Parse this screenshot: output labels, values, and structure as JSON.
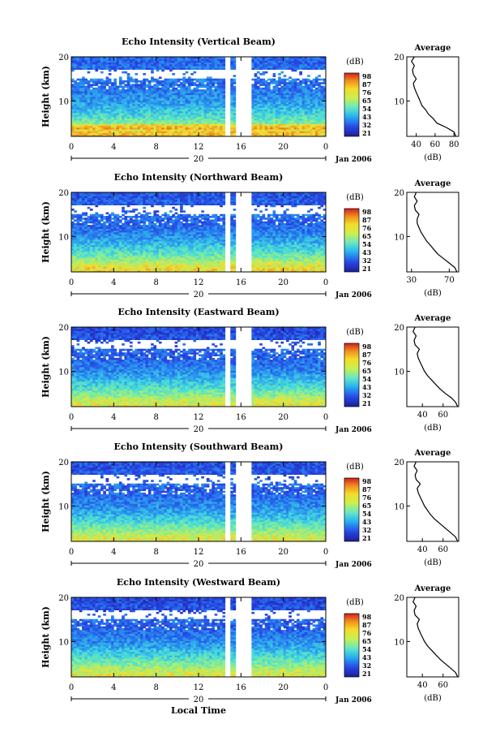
{
  "figure": {
    "xlabel": "Local Time",
    "date_label": "Jan 2006",
    "day_label": "20",
    "colorbar_unit": "(dB)",
    "colorbar_ticks": [
      "98",
      "87",
      "76",
      "65",
      "54",
      "43",
      "32",
      "21"
    ],
    "avg_title": "Average",
    "avg_xlabel": "(dB)"
  },
  "chart_data": [
    {
      "type": "heatmap",
      "title": "Echo Intensity (Vertical Beam)",
      "ylabel": "Height (km)",
      "xlim": [
        0,
        24
      ],
      "ylim": [
        2,
        20
      ],
      "x_ticks": [
        "0",
        "4",
        "8",
        "12",
        "16",
        "20",
        "0"
      ],
      "y_ticks": [
        "20",
        "10"
      ],
      "color_range_db": [
        21,
        98
      ],
      "data_gap_hours": [
        [
          14.6,
          15.0
        ],
        [
          15.5,
          17.0
        ]
      ],
      "average_profile": {
        "type": "line",
        "title": "Average",
        "xlabel": "(dB)",
        "xlim": [
          30,
          85
        ],
        "x_ticks": [
          "40",
          "60",
          "80"
        ],
        "y_ticks": [
          "20",
          "10"
        ],
        "height_km": [
          2,
          3,
          4,
          5,
          6,
          7,
          8,
          9,
          10,
          11,
          12,
          13,
          14,
          15,
          16,
          17,
          18,
          19,
          20
        ],
        "db": [
          82,
          80,
          72,
          62,
          58,
          53,
          50,
          46,
          44,
          42,
          40,
          38,
          37,
          40,
          37,
          36,
          38,
          35,
          38
        ]
      }
    },
    {
      "type": "heatmap",
      "title": "Echo Intensity (Northward Beam)",
      "ylabel": "Height (km)",
      "xlim": [
        0,
        24
      ],
      "ylim": [
        2,
        20
      ],
      "x_ticks": [
        "0",
        "4",
        "8",
        "12",
        "16",
        "20",
        "0"
      ],
      "y_ticks": [
        "20",
        "10"
      ],
      "color_range_db": [
        21,
        98
      ],
      "data_gap_hours": [
        [
          14.6,
          15.0
        ],
        [
          15.5,
          17.0
        ]
      ],
      "average_profile": {
        "type": "line",
        "title": "Average",
        "xlabel": "(dB)",
        "xlim": [
          25,
          80
        ],
        "x_ticks": [
          "30",
          "70"
        ],
        "y_ticks": [
          "20",
          "10"
        ],
        "height_km": [
          2,
          3,
          4,
          5,
          6,
          7,
          8,
          9,
          10,
          11,
          12,
          13,
          14,
          15,
          16,
          17,
          18,
          19,
          20
        ],
        "db": [
          78,
          76,
          70,
          64,
          58,
          54,
          50,
          46,
          43,
          40,
          38,
          36,
          36,
          38,
          34,
          33,
          36,
          33,
          35
        ]
      }
    },
    {
      "type": "heatmap",
      "title": "Echo Intensity (Eastward Beam)",
      "ylabel": "Height (km)",
      "xlim": [
        0,
        24
      ],
      "ylim": [
        2,
        20
      ],
      "x_ticks": [
        "0",
        "4",
        "8",
        "12",
        "16",
        "20",
        "0"
      ],
      "y_ticks": [
        "20",
        "10"
      ],
      "color_range_db": [
        21,
        98
      ],
      "data_gap_hours": [
        [
          14.6,
          15.0
        ],
        [
          15.5,
          17.0
        ]
      ],
      "average_profile": {
        "type": "line",
        "title": "Average",
        "xlabel": "(dB)",
        "xlim": [
          25,
          75
        ],
        "x_ticks": [
          "40",
          "60"
        ],
        "y_ticks": [
          "20",
          "10"
        ],
        "height_km": [
          2,
          3,
          4,
          5,
          6,
          7,
          8,
          9,
          10,
          11,
          12,
          13,
          14,
          15,
          16,
          17,
          18,
          19,
          20
        ],
        "db": [
          74,
          72,
          68,
          62,
          57,
          53,
          49,
          45,
          42,
          40,
          38,
          36,
          35,
          37,
          33,
          32,
          34,
          31,
          33
        ]
      }
    },
    {
      "type": "heatmap",
      "title": "Echo Intensity (Southward Beam)",
      "ylabel": "Height (km)",
      "xlim": [
        0,
        24
      ],
      "ylim": [
        2,
        20
      ],
      "x_ticks": [
        "0",
        "4",
        "8",
        "12",
        "16",
        "20",
        "0"
      ],
      "y_ticks": [
        "20",
        "10"
      ],
      "color_range_db": [
        21,
        98
      ],
      "data_gap_hours": [
        [
          14.6,
          15.0
        ],
        [
          15.5,
          17.0
        ]
      ],
      "average_profile": {
        "type": "line",
        "title": "Average",
        "xlabel": "(dB)",
        "xlim": [
          25,
          75
        ],
        "x_ticks": [
          "40",
          "60"
        ],
        "y_ticks": [
          "20",
          "10"
        ],
        "height_km": [
          2,
          3,
          4,
          5,
          6,
          7,
          8,
          9,
          10,
          11,
          12,
          13,
          14,
          15,
          16,
          17,
          18,
          19,
          20
        ],
        "db": [
          74,
          72,
          67,
          62,
          57,
          52,
          48,
          45,
          42,
          40,
          38,
          36,
          35,
          38,
          34,
          33,
          35,
          32,
          34
        ]
      }
    },
    {
      "type": "heatmap",
      "title": "Echo Intensity (Westward Beam)",
      "ylabel": "Height (km)",
      "xlim": [
        0,
        24
      ],
      "ylim": [
        2,
        20
      ],
      "x_ticks": [
        "0",
        "4",
        "8",
        "12",
        "16",
        "20",
        "0"
      ],
      "y_ticks": [
        "20",
        "10"
      ],
      "color_range_db": [
        21,
        98
      ],
      "data_gap_hours": [
        [
          14.6,
          15.0
        ],
        [
          15.5,
          17.0
        ]
      ],
      "average_profile": {
        "type": "line",
        "title": "Average",
        "xlabel": "(dB)",
        "xlim": [
          25,
          75
        ],
        "x_ticks": [
          "40",
          "60"
        ],
        "y_ticks": [
          "20",
          "10"
        ],
        "height_km": [
          2,
          3,
          4,
          5,
          6,
          7,
          8,
          9,
          10,
          11,
          12,
          13,
          14,
          15,
          16,
          17,
          18,
          19,
          20
        ],
        "db": [
          74,
          72,
          67,
          62,
          57,
          53,
          49,
          45,
          42,
          40,
          38,
          36,
          35,
          37,
          33,
          32,
          34,
          31,
          33
        ]
      }
    }
  ]
}
